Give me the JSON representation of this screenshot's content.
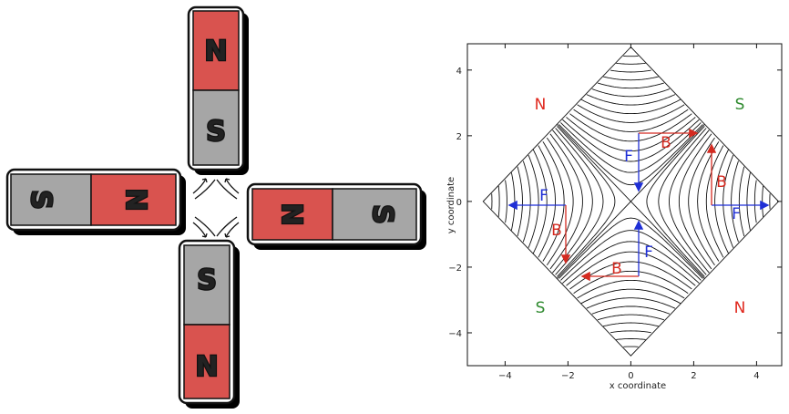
{
  "left_diagram": {
    "magnets": [
      {
        "id": "top",
        "outer_pole": "N",
        "inner_pole": "S"
      },
      {
        "id": "left",
        "outer_pole": "S",
        "inner_pole": "N"
      },
      {
        "id": "right",
        "outer_pole": "S",
        "inner_pole": "N"
      },
      {
        "id": "bottom",
        "outer_pole": "N",
        "inner_pole": "S"
      }
    ],
    "colors": {
      "north": "#d9534f",
      "south": "#a6a6a6",
      "outline": "#111111",
      "shadow": "#000000"
    }
  },
  "plot": {
    "xlabel": "x coordinate",
    "ylabel": "y coordinate",
    "xlim": [
      -5.2,
      4.8
    ],
    "ylim": [
      -5.0,
      4.8
    ],
    "xticks": [
      "−4",
      "−2",
      "0",
      "2",
      "4"
    ],
    "yticks": [
      "4",
      "2",
      "0",
      "−2",
      "−4"
    ],
    "pole_labels": [
      {
        "text": "N",
        "color": "#e0281e"
      },
      {
        "text": "S",
        "color": "#2f8a2f"
      },
      {
        "text": "S",
        "color": "#2f8a2f"
      },
      {
        "text": "N",
        "color": "#e0281e"
      }
    ],
    "field_label": "B",
    "force_label": "F",
    "field_color": "#d42a20",
    "force_color": "#1f2fd6",
    "line_color": "#111111"
  }
}
